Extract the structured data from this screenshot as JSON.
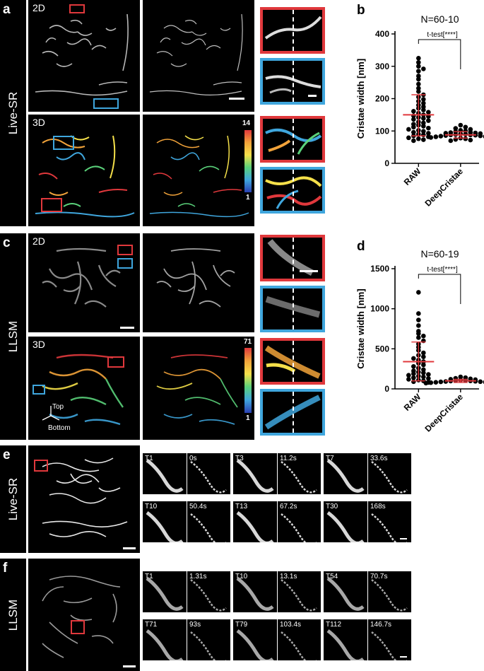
{
  "panels": {
    "a": {
      "letter": "a",
      "side_label": "Live-SR",
      "row1_tag": "2D",
      "row2_tag": "3D",
      "colorbar_max": "14",
      "colorbar_min": "1"
    },
    "b": {
      "letter": "b"
    },
    "c": {
      "letter": "c",
      "side_label": "LLSM",
      "row1_tag": "2D",
      "row2_tag": "3D",
      "colorbar_max": "71",
      "colorbar_min": "1",
      "axis_top": "Top",
      "axis_bottom": "Bottom"
    },
    "d": {
      "letter": "d"
    },
    "e": {
      "letter": "e",
      "side_label": "Live-SR",
      "frames": [
        {
          "t": "T1",
          "time": "0s"
        },
        {
          "t": "T3",
          "time": "11.2s"
        },
        {
          "t": "T7",
          "time": "33.6s"
        },
        {
          "t": "T10",
          "time": "50.4s"
        },
        {
          "t": "T13",
          "time": "67.2s"
        },
        {
          "t": "T30",
          "time": "168s"
        }
      ]
    },
    "f": {
      "letter": "f",
      "side_label": "LLSM",
      "frames": [
        {
          "t": "T1",
          "time": "1.31s"
        },
        {
          "t": "T10",
          "time": "13.1s"
        },
        {
          "t": "T54",
          "time": "70.7s"
        },
        {
          "t": "T71",
          "time": "93s"
        },
        {
          "t": "T79",
          "time": "103.4s"
        },
        {
          "t": "T112",
          "time": "146.7s"
        }
      ]
    }
  },
  "chart_data": [
    {
      "type": "scatter",
      "title": "N=60-10",
      "ylabel": "Cristae width [nm]",
      "categories": [
        "RAW",
        "DeepCristae"
      ],
      "ylim": [
        0,
        400
      ],
      "yticks": [
        0,
        100,
        200,
        300,
        400
      ],
      "annotation": "t-test[****]",
      "series": [
        {
          "category": "RAW",
          "mean": 150,
          "sd_low": 85,
          "sd_high": 212,
          "values": [
            325,
            312,
            300,
            292,
            285,
            270,
            260,
            245,
            232,
            222,
            212,
            205,
            198,
            192,
            186,
            180,
            175,
            170,
            165,
            161,
            158,
            155,
            150,
            147,
            145,
            142,
            139,
            136,
            132,
            128,
            125,
            121,
            118,
            115,
            112,
            109,
            105,
            102,
            99,
            96,
            93,
            90,
            88,
            85,
            82,
            79,
            76,
            73,
            70
          ]
        },
        {
          "category": "DeepCristae",
          "mean": 88,
          "sd_low": 78,
          "sd_high": 98,
          "values": [
            118,
            112,
            108,
            105,
            102,
            100,
            98,
            96,
            95,
            94,
            93,
            92,
            91,
            90,
            89,
            88,
            88,
            87,
            86,
            85,
            84,
            83,
            82,
            81,
            80,
            78,
            76,
            74,
            72,
            70
          ]
        }
      ]
    },
    {
      "type": "scatter",
      "title": "N=60-19",
      "ylabel": "Cristae width [nm]",
      "categories": [
        "RAW",
        "DeepCristae"
      ],
      "ylim": [
        0,
        1500
      ],
      "yticks": [
        0,
        500,
        1000,
        1500
      ],
      "annotation": "t-test[****]",
      "series": [
        {
          "category": "RAW",
          "mean": 340,
          "sd_low": 100,
          "sd_high": 585,
          "values": [
            1205,
            940,
            860,
            790,
            720,
            690,
            660,
            640,
            600,
            560,
            520,
            480,
            450,
            420,
            400,
            380,
            360,
            340,
            320,
            300,
            280,
            260,
            240,
            225,
            210,
            200,
            190,
            180,
            170,
            160,
            150,
            140,
            130,
            120,
            110,
            100,
            90,
            80
          ]
        },
        {
          "category": "DeepCristae",
          "mean": 100,
          "sd_low": 80,
          "sd_high": 120,
          "values": [
            150,
            140,
            132,
            125,
            120,
            115,
            110,
            106,
            103,
            100,
            98,
            95,
            92,
            90,
            88,
            85,
            82,
            80,
            78,
            75,
            72
          ]
        }
      ]
    }
  ]
}
